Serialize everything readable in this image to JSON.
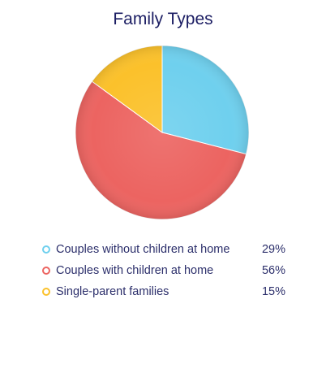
{
  "chart_data": {
    "type": "pie",
    "title": "Family Types",
    "unit": "%",
    "slices": [
      {
        "label": "Couples without children at home",
        "value": 29,
        "display": "29%",
        "color": "#6fd0ee"
      },
      {
        "label": "Couples with children at home",
        "value": 56,
        "display": "56%",
        "color": "#ec6461"
      },
      {
        "label": "Single-parent families",
        "value": 15,
        "display": "15%",
        "color": "#fbc12b"
      }
    ],
    "legend_position": "bottom"
  }
}
